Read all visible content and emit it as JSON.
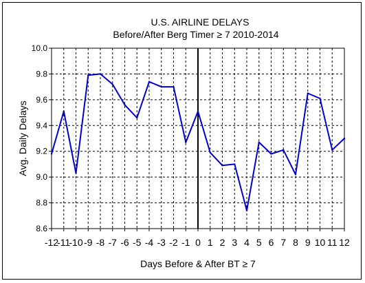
{
  "chart_data": {
    "type": "line",
    "title": "U.S. AIRLINE DELAYS",
    "subtitle": "Before/After Berg Timer ≥ 7   2010-2014",
    "xlabel": "Days Before & After BT ≥ 7",
    "ylabel": "Avg. Daily Delays",
    "x": [
      -12,
      -11,
      -10,
      -9,
      -8,
      -7,
      -6,
      -5,
      -4,
      -3,
      -2,
      -1,
      0,
      1,
      2,
      3,
      4,
      5,
      6,
      7,
      8,
      9,
      10,
      11,
      12
    ],
    "x_tick_labels": [
      "-12",
      "-11",
      "-10",
      "-9",
      "-8",
      "-7",
      "-6",
      "-5",
      "-4",
      "-3",
      "-2",
      "-1",
      "0",
      "1",
      "2",
      "3",
      "4",
      "5",
      "6",
      "7",
      "8",
      "9",
      "10",
      "11",
      "12"
    ],
    "series": [
      {
        "name": "",
        "color": "#0000cc",
        "values": [
          9.18,
          9.51,
          9.03,
          9.79,
          9.8,
          9.72,
          9.56,
          9.46,
          9.74,
          9.7,
          9.7,
          9.27,
          9.51,
          9.19,
          9.09,
          9.1,
          8.74,
          9.27,
          9.18,
          9.21,
          9.02,
          9.65,
          9.61,
          9.21,
          9.3
        ]
      }
    ],
    "ylim": [
      8.6,
      10.0
    ],
    "y_ticks": [
      "8.6",
      "8.8",
      "9.0",
      "9.2",
      "9.4",
      "9.6",
      "9.8",
      "10.0"
    ],
    "grid": true,
    "grid_style": "dashed",
    "reference_line_x": 0,
    "legend": "none"
  }
}
